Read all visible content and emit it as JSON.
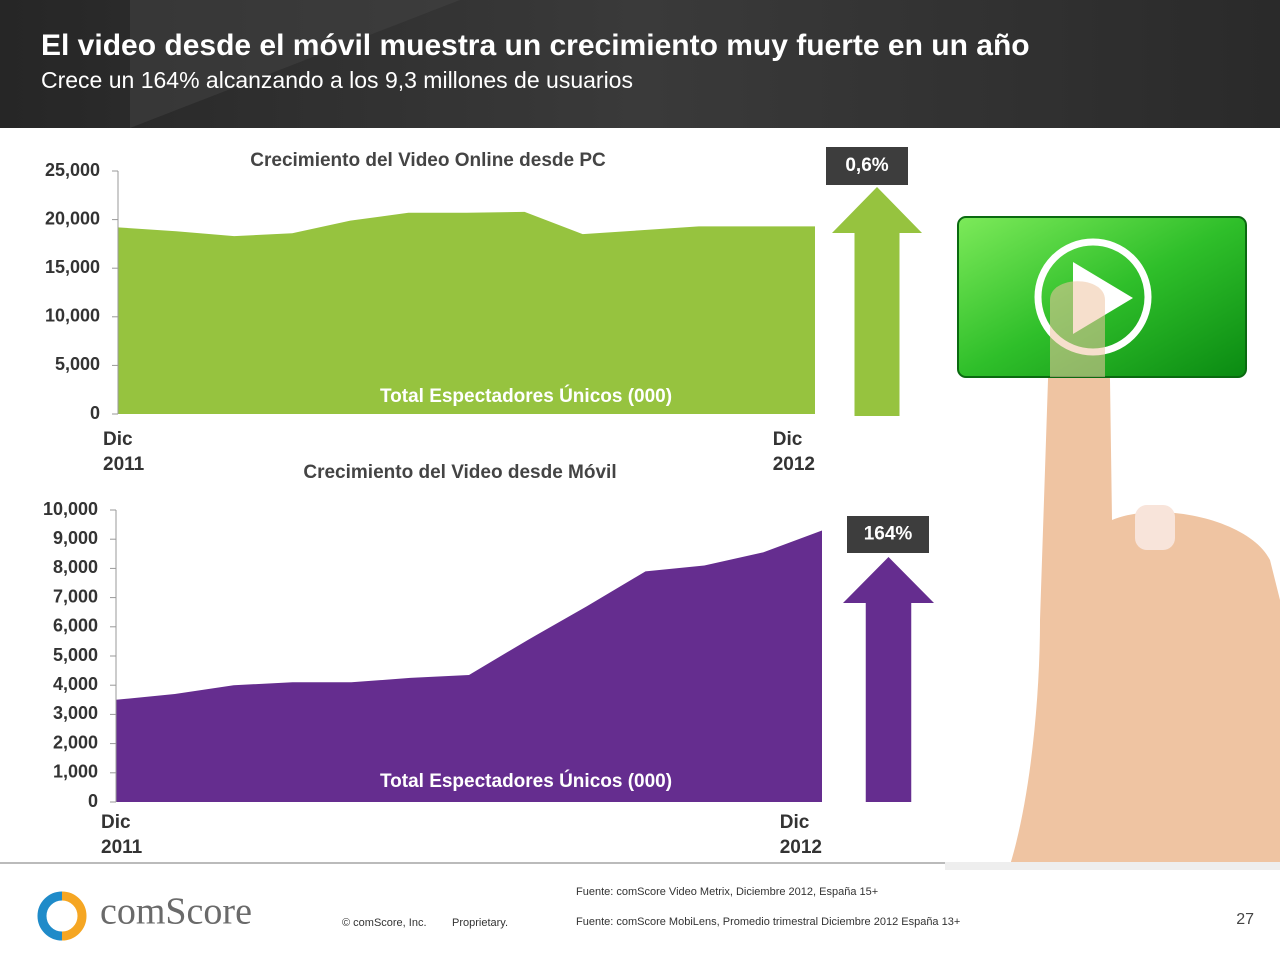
{
  "header": {
    "title": "El video desde el móvil muestra un crecimiento muy fuerte en un año",
    "subtitle": "Crece un 164% alcanzando a los 9,3 millones de usuarios"
  },
  "chart_data": [
    {
      "type": "area",
      "title": "Crecimiento del Video Online desde PC",
      "annotation": "Total Espectadores Únicos (000)",
      "change_label": "0,6%",
      "categories": [
        "Dic\n2011",
        null,
        null,
        null,
        null,
        null,
        null,
        null,
        null,
        null,
        null,
        null,
        "Dic\n2012"
      ],
      "values": [
        19200,
        18800,
        18300,
        18600,
        19900,
        20700,
        20700,
        20800,
        18500,
        18900,
        19300,
        19300,
        19300
      ],
      "color": "#96c33f",
      "ylim": [
        0,
        25000
      ],
      "yticks": [
        0,
        {
          "value": 5000,
          "label": "5,000"
        },
        {
          "value": 10000,
          "label": "10,000"
        },
        {
          "value": 15000,
          "label": "15,000"
        },
        {
          "value": 20000,
          "label": "20,000"
        },
        {
          "value": 25000,
          "label": "25,000"
        }
      ]
    },
    {
      "type": "area",
      "title": "Crecimiento del Video desde Móvil",
      "annotation": "Total Espectadores Únicos (000)",
      "change_label": "164%",
      "categories": [
        "Dic\n2011",
        null,
        null,
        null,
        null,
        null,
        null,
        null,
        null,
        null,
        null,
        null,
        "Dic\n2012"
      ],
      "values": [
        3500,
        3700,
        4000,
        4100,
        4100,
        4250,
        4350,
        5550,
        6700,
        7900,
        8100,
        8550,
        9300
      ],
      "color": "#652d8f",
      "ylim": [
        0,
        10000
      ],
      "yticks": [
        0,
        {
          "value": 1000,
          "label": "1,000"
        },
        {
          "value": 2000,
          "label": "2,000"
        },
        {
          "value": 3000,
          "label": "3,000"
        },
        {
          "value": 4000,
          "label": "4,000"
        },
        {
          "value": 5000,
          "label": "5,000"
        },
        {
          "value": 6000,
          "label": "6,000"
        },
        {
          "value": 7000,
          "label": "7,000"
        },
        {
          "value": 8000,
          "label": "8,000"
        },
        {
          "value": 9000,
          "label": "9,000"
        },
        {
          "value": 10000,
          "label": "10,000"
        }
      ]
    }
  ],
  "footer": {
    "logo": "comScore",
    "copyright": "© comScore, Inc.",
    "proprietary": "Proprietary.",
    "source_1": "Fuente: comScore Video Metrix, Diciembre 2012, España 15+",
    "source_2": "Fuente: comScore MobiLens, Promedio trimestral Diciembre 2012 España 13+",
    "page": "27"
  }
}
